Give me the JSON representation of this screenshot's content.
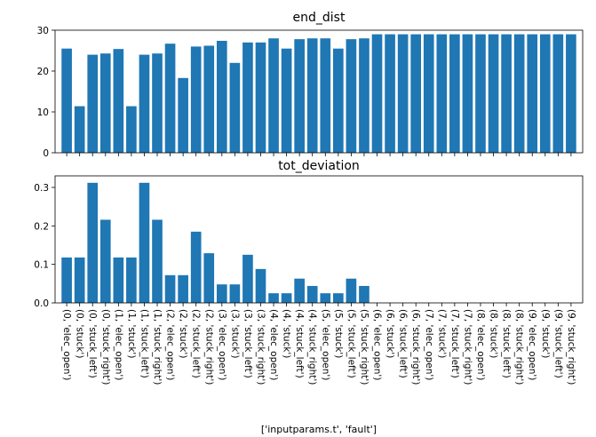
{
  "chart_data": [
    {
      "type": "bar",
      "title": "end_dist",
      "xlabel": "",
      "ylabel": "",
      "ylim": [
        0,
        30
      ],
      "yticks": [
        0,
        10,
        20,
        30
      ],
      "color": "#1f77b4",
      "categories": [
        "(0, 'elec_open')",
        "(0, 'stuck')",
        "(0, 'stuck_left')",
        "(0, 'stuck_right')",
        "(1, 'elec_open')",
        "(1, 'stuck')",
        "(1, 'stuck_left')",
        "(1, 'stuck_right')",
        "(2, 'elec_open')",
        "(2, 'stuck')",
        "(2, 'stuck_left')",
        "(2, 'stuck_right')",
        "(3, 'elec_open')",
        "(3, 'stuck')",
        "(3, 'stuck_left')",
        "(3, 'stuck_right')",
        "(4, 'elec_open')",
        "(4, 'stuck')",
        "(4, 'stuck_left')",
        "(4, 'stuck_right')",
        "(5, 'elec_open')",
        "(5, 'stuck')",
        "(5, 'stuck_left')",
        "(5, 'stuck_right')",
        "(6, 'elec_open')",
        "(6, 'stuck')",
        "(6, 'stuck_left')",
        "(6, 'stuck_right')",
        "(7, 'elec_open')",
        "(7, 'stuck')",
        "(7, 'stuck_left')",
        "(7, 'stuck_right')",
        "(8, 'elec_open')",
        "(8, 'stuck')",
        "(8, 'stuck_left')",
        "(8, 'stuck_right')",
        "(9, 'elec_open')",
        "(9, 'stuck')",
        "(9, 'stuck_left')",
        "(9, 'stuck_right')"
      ],
      "values": [
        25.5,
        11.4,
        24.0,
        24.3,
        25.4,
        11.4,
        24.0,
        24.3,
        26.7,
        18.3,
        26.0,
        26.2,
        27.4,
        22.0,
        27.0,
        27.0,
        28.0,
        25.5,
        27.8,
        28.0,
        28.0,
        25.5,
        27.8,
        28.0,
        29.0,
        29.0,
        29.0,
        29.0,
        29.0,
        29.0,
        29.0,
        29.0,
        29.0,
        29.0,
        29.0,
        29.0,
        29.0,
        29.0,
        29.0,
        29.0
      ],
      "show_xtick_labels": false
    },
    {
      "type": "bar",
      "title": "tot_deviation",
      "xlabel": "['inputparams.t', 'fault']",
      "ylabel": "",
      "ylim": [
        0,
        0.33
      ],
      "yticks": [
        "0.0",
        "0.1",
        "0.2",
        "0.3"
      ],
      "color": "#1f77b4",
      "categories": [
        "(0, 'elec_open')",
        "(0, 'stuck')",
        "(0, 'stuck_left')",
        "(0, 'stuck_right')",
        "(1, 'elec_open')",
        "(1, 'stuck')",
        "(1, 'stuck_left')",
        "(1, 'stuck_right')",
        "(2, 'elec_open')",
        "(2, 'stuck')",
        "(2, 'stuck_left')",
        "(2, 'stuck_right')",
        "(3, 'elec_open')",
        "(3, 'stuck')",
        "(3, 'stuck_left')",
        "(3, 'stuck_right')",
        "(4, 'elec_open')",
        "(4, 'stuck')",
        "(4, 'stuck_left')",
        "(4, 'stuck_right')",
        "(5, 'elec_open')",
        "(5, 'stuck')",
        "(5, 'stuck_left')",
        "(5, 'stuck_right')",
        "(6, 'elec_open')",
        "(6, 'stuck')",
        "(6, 'stuck_left')",
        "(6, 'stuck_right')",
        "(7, 'elec_open')",
        "(7, 'stuck')",
        "(7, 'stuck_left')",
        "(7, 'stuck_right')",
        "(8, 'elec_open')",
        "(8, 'stuck')",
        "(8, 'stuck_left')",
        "(8, 'stuck_right')",
        "(9, 'elec_open')",
        "(9, 'stuck')",
        "(9, 'stuck_left')",
        "(9, 'stuck_right')"
      ],
      "values": [
        0.118,
        0.118,
        0.312,
        0.216,
        0.118,
        0.118,
        0.312,
        0.216,
        0.072,
        0.072,
        0.185,
        0.129,
        0.048,
        0.048,
        0.125,
        0.088,
        0.025,
        0.025,
        0.063,
        0.044,
        0.025,
        0.025,
        0.063,
        0.044,
        0,
        0,
        0,
        0,
        0,
        0,
        0,
        0,
        0,
        0,
        0,
        0,
        0,
        0,
        0,
        0
      ],
      "show_xtick_labels": true
    }
  ]
}
